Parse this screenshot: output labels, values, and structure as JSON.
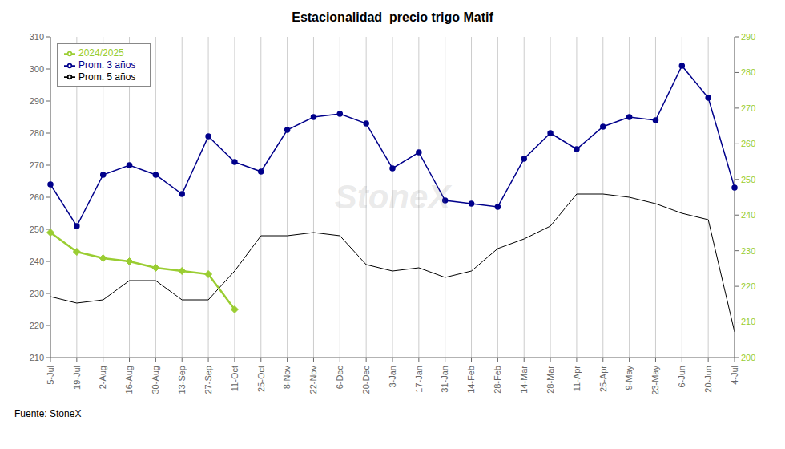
{
  "chart_data": {
    "type": "line",
    "title": "Estacionalidad  precio trigo Matif",
    "categories": [
      "5-Jul",
      "19-Jul",
      "2-Aug",
      "16-Aug",
      "30-Aug",
      "13-Sep",
      "27-Sep",
      "11-Oct",
      "25-Oct",
      "8-Nov",
      "22-Nov",
      "6-Dec",
      "20-Dec",
      "3-Jan",
      "17-Jan",
      "31-Jan",
      "14-Feb",
      "28-Feb",
      "14-Mar",
      "28-Mar",
      "11-Apr",
      "25-Apr",
      "9-May",
      "23-May",
      "6-Jun",
      "20-Jun",
      "4-Jul"
    ],
    "series": [
      {
        "name": "Prom. 3 años",
        "color": "#00008B",
        "marker": "circle",
        "values": [
          264,
          251,
          267,
          270,
          267,
          261,
          279,
          271,
          268,
          281,
          285,
          286,
          283,
          269,
          274,
          259,
          258,
          257,
          272,
          280,
          275,
          282,
          285,
          284,
          301,
          291,
          263
        ]
      },
      {
        "name": "Prom. 5 años",
        "color": "#000000",
        "marker": "none",
        "values": [
          229,
          227,
          228,
          234,
          234,
          228,
          228,
          237,
          248,
          248,
          249,
          248,
          239,
          237,
          238,
          235,
          237,
          244,
          247,
          251,
          261,
          261,
          260,
          258,
          255,
          253,
          218
        ]
      },
      {
        "name": "2024/2025",
        "color": "#9ACD32",
        "marker": "diamond",
        "values": [
          249,
          243,
          241,
          240,
          238,
          237,
          236,
          225,
          null,
          null,
          null,
          null,
          null,
          null,
          null,
          null,
          null,
          null,
          null,
          null,
          null,
          null,
          null,
          null,
          null,
          null,
          null
        ]
      }
    ],
    "ylim": [
      210,
      310
    ],
    "yticks": [
      210,
      220,
      230,
      240,
      250,
      260,
      270,
      280,
      290,
      300,
      310
    ],
    "y2lim": [
      200,
      290
    ],
    "y2ticks": [
      200,
      210,
      220,
      230,
      240,
      250,
      260,
      270,
      280,
      290
    ],
    "grid": "x",
    "legend": "upper left",
    "annotations": [
      "StoneX",
      "Fuente: StoneX"
    ]
  }
}
